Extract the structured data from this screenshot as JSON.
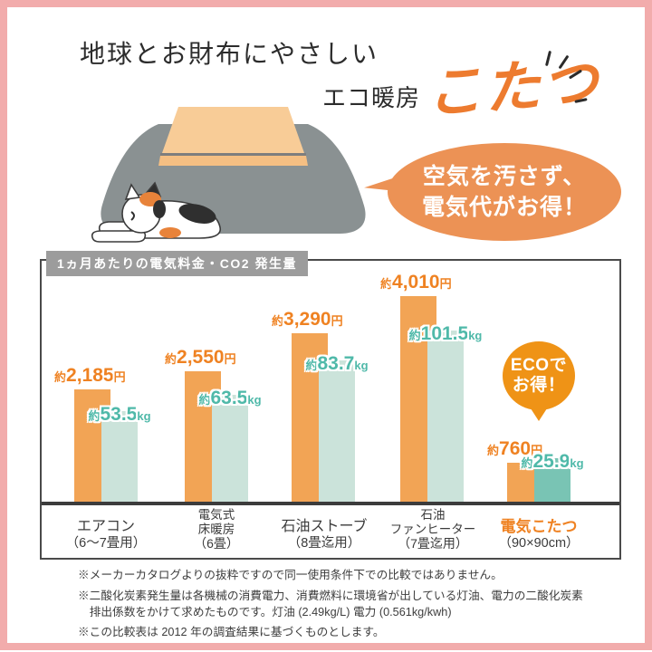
{
  "page": {
    "title": "地球とお財布にやさしい",
    "subtitle_prefix": "エコ暖房",
    "subtitle_main": "こたつ"
  },
  "speech_bubble": {
    "line1": "空気を汚さず、",
    "line2": "電気代がお得！"
  },
  "eco_badge": {
    "line1": "ECOで",
    "line2": "お得！"
  },
  "chart_data": {
    "type": "bar",
    "title": "1ヵ月あたりの電気料金・CO2 発生量",
    "categories": [
      "エアコン（6～7畳用）",
      "電気式床暖房（6畳）",
      "石油ストーブ（8畳迄用）",
      "石油ファンヒーター（7畳迄用）",
      "電気こたつ（90×90cm）"
    ],
    "series": [
      {
        "name": "電気料金",
        "unit": "円",
        "color": "#F2A455",
        "values": [
          2185,
          2550,
          3290,
          4010,
          760
        ]
      },
      {
        "name": "CO2発生量",
        "unit": "kg",
        "color": "#CBE3DA",
        "highlight_color": "#79C4B4",
        "values": [
          53.5,
          63.5,
          83.7,
          101.5,
          25.9
        ]
      }
    ],
    "value_prefix": "約",
    "legend": "none",
    "gridlines": false
  },
  "groups": [
    {
      "category_lines": [
        "エアコン",
        "（6～7畳用）"
      ],
      "yen_label": {
        "approx": "約",
        "value": "2,185",
        "unit": "円"
      },
      "kg_label": {
        "approx": "約",
        "value": "53.5",
        "unit": "kg"
      },
      "highlight": false
    },
    {
      "category_lines": [
        "電気式",
        "床暖房",
        "（6畳）"
      ],
      "yen_label": {
        "approx": "約",
        "value": "2,550",
        "unit": "円"
      },
      "kg_label": {
        "approx": "約",
        "value": "63.5",
        "unit": "kg"
      },
      "highlight": false
    },
    {
      "category_lines": [
        "石油ストーブ",
        "（8畳迄用）"
      ],
      "yen_label": {
        "approx": "約",
        "value": "3,290",
        "unit": "円"
      },
      "kg_label": {
        "approx": "約",
        "value": "83.7",
        "unit": "kg"
      },
      "highlight": false
    },
    {
      "category_lines": [
        "石油",
        "ファンヒーター",
        "（7畳迄用）"
      ],
      "yen_label": {
        "approx": "約",
        "value": "4,010",
        "unit": "円"
      },
      "kg_label": {
        "approx": "約",
        "value": "101.5",
        "unit": "kg"
      },
      "highlight": false
    },
    {
      "category_lines": [
        "電気こたつ",
        "（90×90cm）"
      ],
      "yen_label": {
        "approx": "約",
        "value": "760",
        "unit": "円"
      },
      "kg_label": {
        "approx": "約",
        "value": "25.9",
        "unit": "kg"
      },
      "highlight": true
    }
  ],
  "footnotes": [
    "※メーカーカタログよりの抜粋ですので同一使用条件下での比較ではありません。",
    "※二酸化炭素発生量は各機械の消費電力、消費燃料に環境省が出している灯油、電力の二酸化炭素排出係数をかけて求めたものです。灯油 (2.49kg/L) 電力 (0.561kg/kwh)",
    "※この比較表は 2012 年の調査結果に基づくものとします。"
  ],
  "colors": {
    "accent_orange": "#ED7B2F",
    "bar_orange": "#F2A455",
    "bar_teal": "#CBE3DA",
    "bar_teal_highlight": "#79C4B4",
    "yen_label_orange": "#EF8222",
    "kg_label_teal": "#4FB9A9",
    "frame_pink": "#F2ACAC",
    "header_gray": "#9C9C9C",
    "bubble_orange": "#EC9255",
    "badge_orange": "#EF9316",
    "blanket_gray": "#8A9192",
    "tabletop_orange": "#F8CC97"
  }
}
